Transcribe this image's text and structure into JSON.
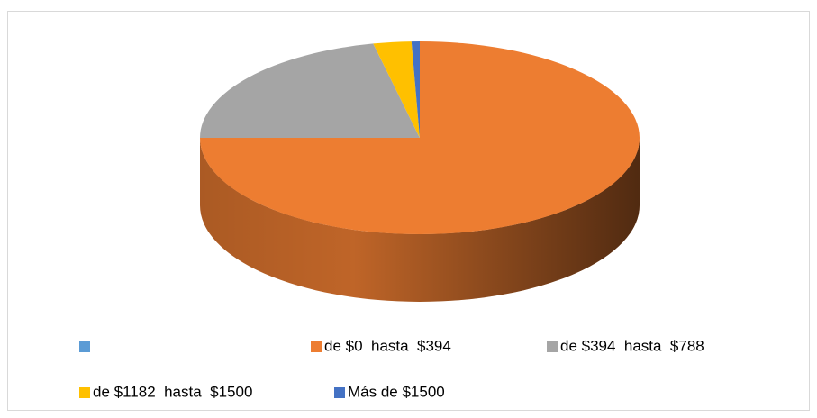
{
  "chart_data": {
    "type": "pie3d",
    "categories": [
      null,
      "de $0  hasta  $394",
      "de $394  hasta  $788",
      "de $1182  hasta  $1500",
      "Más de $1500"
    ],
    "values": [
      0,
      75,
      21.6,
      2.8,
      0.6
    ],
    "colors": [
      "#5b9bd5",
      "#ed7d31",
      "#a5a5a5",
      "#ffc000",
      "#4472c4"
    ],
    "legend": "bottom"
  }
}
